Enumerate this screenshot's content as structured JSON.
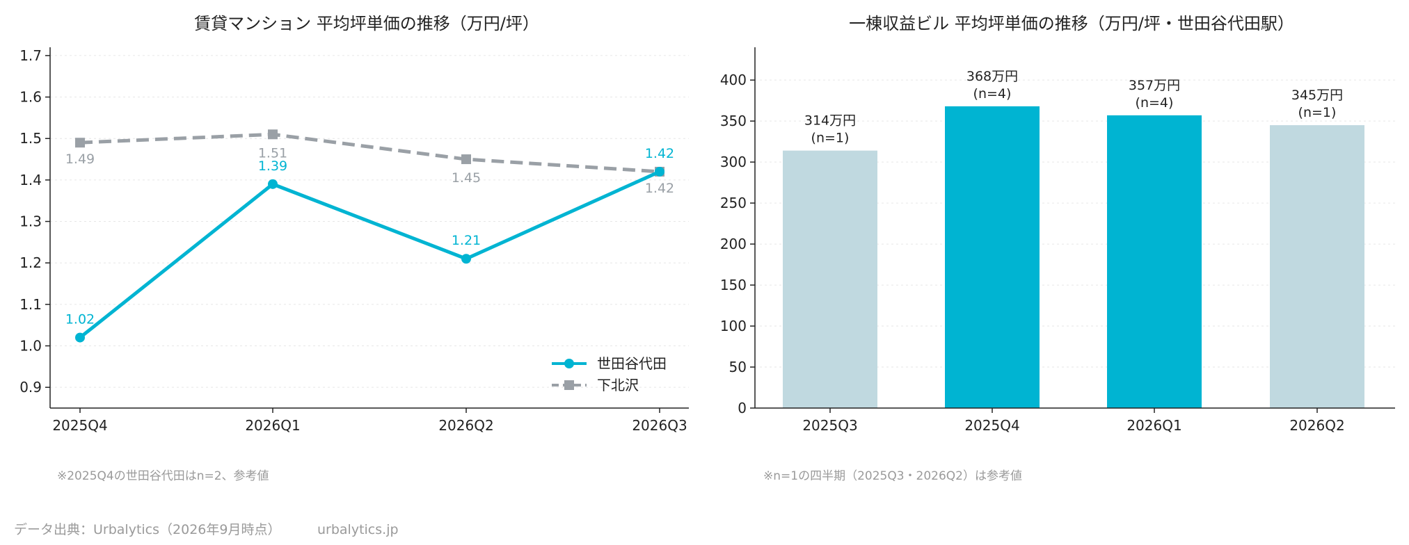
{
  "colors": {
    "primary": "#00b4d2",
    "secondary": "#9aa0a6",
    "bar_light": "#c0d9e0",
    "note": "#9a9a9a"
  },
  "chart_data": [
    {
      "type": "line",
      "title": "賃貸マンション 平均坪単価の推移（万円/坪）",
      "categories": [
        "2025Q4",
        "2026Q1",
        "2026Q2",
        "2026Q3"
      ],
      "ylim": [
        0.85,
        1.72
      ],
      "yticks": [
        "0.9",
        "1.0",
        "1.1",
        "1.2",
        "1.3",
        "1.4",
        "1.5",
        "1.6",
        "1.7"
      ],
      "grid": true,
      "legend": "bottom-right",
      "series": [
        {
          "name": "世田谷代田",
          "values": [
            1.02,
            1.39,
            1.21,
            1.42
          ],
          "labels": [
            "1.02",
            "1.39",
            "1.21",
            "1.42"
          ],
          "color": "#00b4d2",
          "style": "solid",
          "marker": "circle"
        },
        {
          "name": "下北沢",
          "values": [
            1.49,
            1.51,
            1.45,
            1.42
          ],
          "labels": [
            "1.49",
            "1.51",
            "1.45",
            "1.42"
          ],
          "color": "#9aa0a6",
          "style": "dashed",
          "marker": "square"
        }
      ],
      "note": "※2025Q4の世田谷代田はn=2、参考値"
    },
    {
      "type": "bar",
      "title": "一棟収益ビル 平均坪単価の推移（万円/坪・世田谷代田駅）",
      "categories": [
        "2025Q3",
        "2025Q4",
        "2026Q1",
        "2026Q2"
      ],
      "values": [
        314,
        368,
        357,
        345
      ],
      "value_labels": [
        "314万円",
        "368万円",
        "357万円",
        "345万円"
      ],
      "counts": [
        "(n=1)",
        "(n=4)",
        "(n=4)",
        "(n=1)"
      ],
      "highlight": [
        false,
        true,
        true,
        false
      ],
      "ylim": [
        0,
        440
      ],
      "yticks": [
        "0",
        "50",
        "100",
        "150",
        "200",
        "250",
        "300",
        "350",
        "400"
      ],
      "grid": true,
      "note": "※n=1の四半期（2025Q3・2026Q2）は参考値"
    }
  ],
  "footer": {
    "source": "データ出典：Urbalytics（2026年9月時点）",
    "site": "urbalytics.jp"
  }
}
